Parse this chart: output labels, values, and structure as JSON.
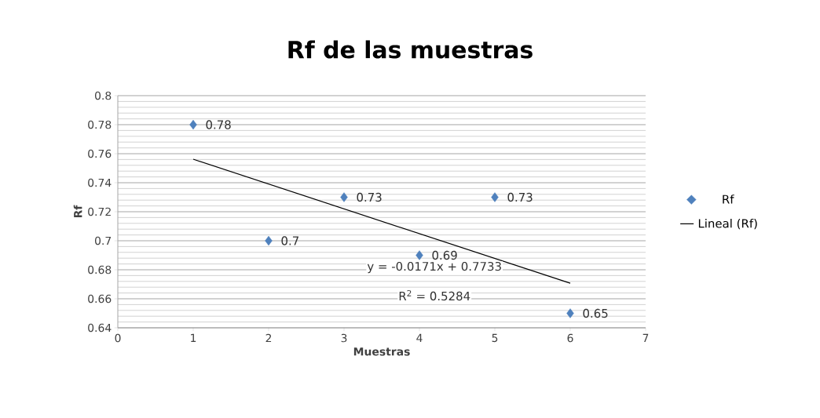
{
  "chart_data": {
    "type": "scatter",
    "title": "Rf de las muestras",
    "xlabel": "Muestras",
    "ylabel": "Rf",
    "xlim": [
      0,
      7
    ],
    "xticks": [
      0,
      1,
      2,
      3,
      4,
      5,
      6,
      7
    ],
    "ylim": [
      0.64,
      0.8
    ],
    "yticks": [
      0.64,
      0.66,
      0.68,
      0.7,
      0.72,
      0.74,
      0.76,
      0.78,
      0.8
    ],
    "grid": "y",
    "legend": "right",
    "series": [
      {
        "name": "Rf",
        "color": "#4f81bd",
        "marker": "diamond",
        "x": [
          1,
          2,
          3,
          4,
          5,
          6
        ],
        "values": [
          0.78,
          0.7,
          0.73,
          0.69,
          0.73,
          0.65
        ],
        "value_labels": [
          "0.78",
          "0.7",
          "0.73",
          "0.69",
          "0.73",
          "0.65"
        ]
      },
      {
        "name": "Lineal (Rf)",
        "type": "line",
        "color": "#000000",
        "x": [
          1,
          6
        ],
        "values": [
          0.7562,
          0.6707
        ]
      }
    ],
    "annotations": [
      "y = -0.0171x + 0.7733",
      "R$^{2}$ = 0.5284"
    ]
  }
}
